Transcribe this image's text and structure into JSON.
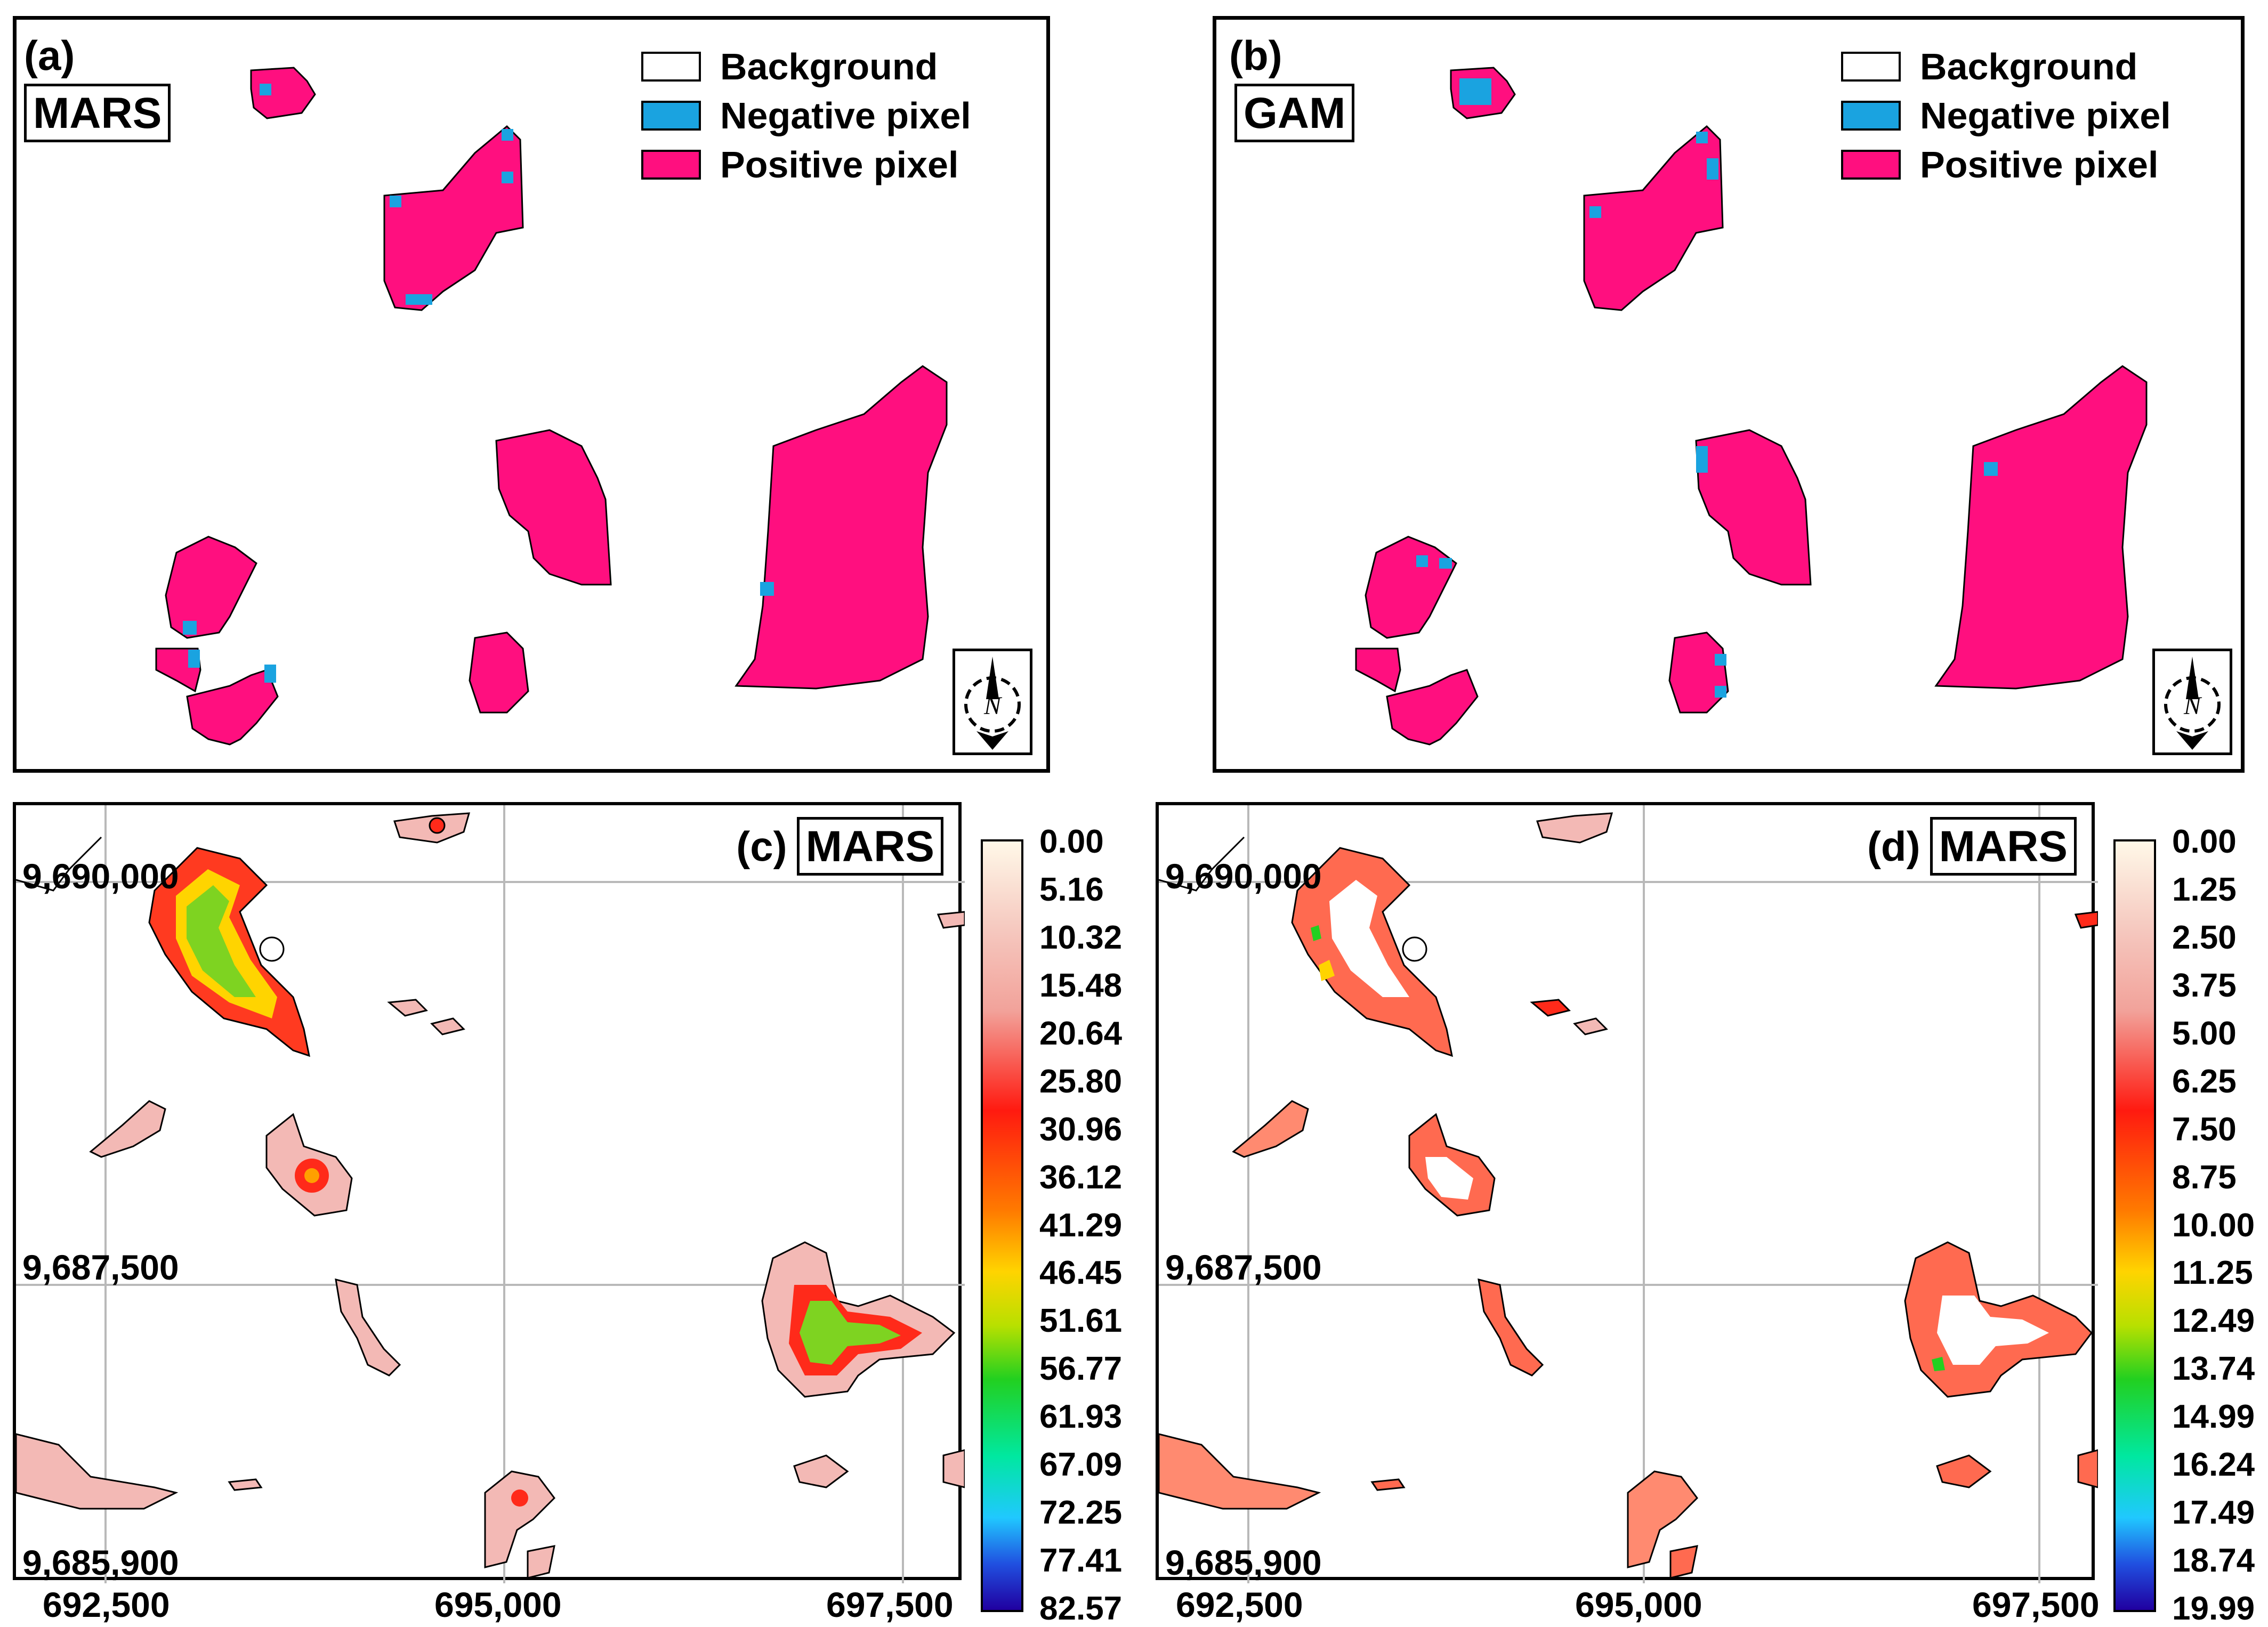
{
  "legend": {
    "items": [
      {
        "label": "Background",
        "color": "#ffffff"
      },
      {
        "label": "Negative pixel",
        "color": "#1aa3e0"
      },
      {
        "label": "Positive pixel",
        "color": "#ff0f7f"
      }
    ]
  },
  "panels": {
    "a": {
      "letter": "(a)",
      "model": "MARS"
    },
    "b": {
      "letter": "(b)",
      "model": "GAM"
    },
    "c": {
      "letter": "(c)",
      "model": "MARS"
    },
    "d": {
      "letter": "(d)",
      "model": "MARS"
    }
  },
  "compass": {
    "letter": "N"
  },
  "map_axes": {
    "y_labels": [
      "9,690,000",
      "9,687,500",
      "9,685,900"
    ],
    "x_labels": [
      "692,500",
      "695,000",
      "697,500"
    ]
  },
  "colorbar_c": {
    "ticks": [
      "0.00",
      "5.16",
      "10.32",
      "15.48",
      "20.64",
      "25.80",
      "30.96",
      "36.12",
      "41.29",
      "46.45",
      "51.61",
      "56.77",
      "61.93",
      "67.09",
      "72.25",
      "77.41",
      "82.57"
    ]
  },
  "colorbar_d": {
    "ticks": [
      "0.00",
      "1.25",
      "2.50",
      "3.75",
      "5.00",
      "6.25",
      "7.50",
      "8.75",
      "10.00",
      "11.25",
      "12.49",
      "13.74",
      "14.99",
      "16.24",
      "17.49",
      "18.74",
      "19.99"
    ]
  },
  "colors": {
    "positive": "#ff0f7f",
    "negative": "#1aa3e0",
    "heat_low": "#f3b9b5",
    "heat_mid": "#ff2a1a",
    "heat_high": "#22d020"
  }
}
